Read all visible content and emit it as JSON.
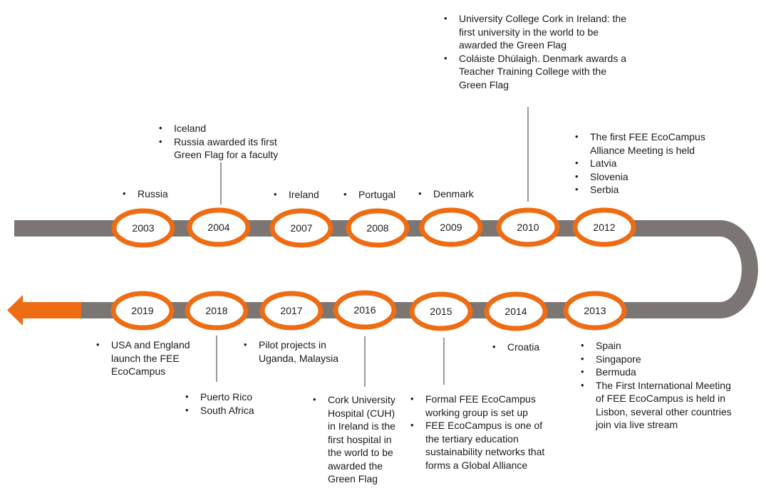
{
  "timeline": {
    "top_row": [
      {
        "year": "2003",
        "items": [
          "Russia"
        ]
      },
      {
        "year": "2004",
        "items": [
          "Iceland",
          "Russia awarded its first Green Flag for a faculty"
        ]
      },
      {
        "year": "2007",
        "items": [
          "Ireland"
        ]
      },
      {
        "year": "2008",
        "items": [
          "Portugal"
        ]
      },
      {
        "year": "2009",
        "items": [
          "Denmark"
        ]
      },
      {
        "year": "2010",
        "items": [
          "University College Cork in Ireland: the first university in the world to be awarded the Green Flag",
          "Coláiste Dhúlaigh. Denmark awards a Teacher Training College with the Green Flag"
        ]
      },
      {
        "year": "2012",
        "items": [
          "The first FEE EcoCampus Alliance Meeting is held",
          "Latvia",
          "Slovenia",
          "Serbia"
        ]
      }
    ],
    "bottom_row": [
      {
        "year": "2013",
        "items": [
          "Spain",
          "Singapore",
          "Bermuda",
          "The First International Meeting of FEE EcoCampus is held in Lisbon, several other countries join via live stream"
        ]
      },
      {
        "year": "2014",
        "items": [
          "Croatia"
        ]
      },
      {
        "year": "2015",
        "items": [
          "Formal FEE EcoCampus working group is set up",
          "FEE EcoCampus is one of the tertiary education sustainability networks that forms a Global Alliance"
        ]
      },
      {
        "year": "2016",
        "items": [
          "Cork University Hospital (CUH) in Ireland is the first hospital in the world to be awarded the Green Flag"
        ]
      },
      {
        "year": "2017",
        "items": [
          "Pilot projects in Uganda, Malaysia"
        ]
      },
      {
        "year": "2018",
        "items": [
          "Puerto Rico",
          "South Africa"
        ]
      },
      {
        "year": "2019",
        "items": [
          "USA and England launch the FEE EcoCampus"
        ]
      }
    ]
  },
  "colors": {
    "track": "#7b7674",
    "accent": "#ee6c13",
    "oval_fill": "#ffffff"
  }
}
